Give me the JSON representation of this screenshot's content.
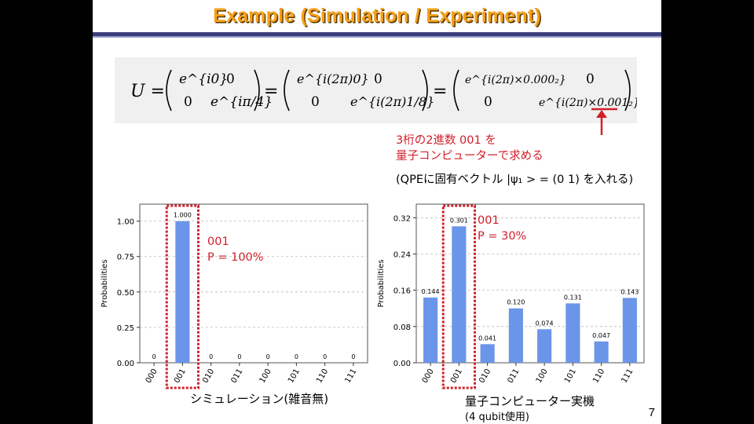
{
  "slide_title": "Example (Simulation / Experiment)",
  "page_number": "7",
  "equation": {
    "lhs": "U =",
    "m1": [
      "e^{i0}",
      "0",
      "0",
      "e^{iπ/4}"
    ],
    "m2": [
      "e^{i(2π)0}",
      "0",
      "0",
      "e^{i(2π)1/8}"
    ],
    "m3": [
      "e^{i(2π)×0.000₂}",
      "0",
      "0",
      "e^{i(2π)×0.001₂}"
    ]
  },
  "annotation": {
    "line1": "3桁の2進数 001 を",
    "line2": "量子コンピューターで求める",
    "line3": "(QPEに固有ベクトル |ψ₁ > = (0 1) を入れる)"
  },
  "charts": {
    "sim": {
      "caption": "シミュレーション(雑音無)",
      "highlight_label": "001",
      "highlight_prob": "P = 100%"
    },
    "real": {
      "caption": "量子コンピューター実機",
      "subcaption": "(4 qubit使用)",
      "highlight_label": "001",
      "highlight_prob": "P = 30%"
    }
  },
  "chart_data": [
    {
      "type": "bar",
      "title": "",
      "ylabel": "Probabilities",
      "categories": [
        "000",
        "001",
        "010",
        "011",
        "100",
        "101",
        "110",
        "111"
      ],
      "values": [
        0,
        1.0,
        0,
        0,
        0,
        0,
        0,
        0
      ],
      "value_labels": [
        "0",
        "1.000",
        "0",
        "0",
        "0",
        "0",
        "0",
        "0"
      ],
      "yticks": [
        "0.00",
        "0.25",
        "0.50",
        "0.75",
        "1.00"
      ],
      "ylim": [
        0,
        1.12
      ],
      "grid": "horizontal dashed",
      "bar_color": "#6b95e8"
    },
    {
      "type": "bar",
      "title": "",
      "ylabel": "Probabilities",
      "categories": [
        "000",
        "001",
        "010",
        "011",
        "100",
        "101",
        "110",
        "111"
      ],
      "values": [
        0.144,
        0.301,
        0.041,
        0.12,
        0.074,
        0.131,
        0.047,
        0.143
      ],
      "value_labels": [
        "0.144",
        "0.301",
        "0.041",
        "0.120",
        "0.074",
        "0.131",
        "0.047",
        "0.143"
      ],
      "yticks": [
        "0.00",
        "0.08",
        "0.16",
        "0.24",
        "0.32"
      ],
      "ylim": [
        0,
        0.35
      ],
      "grid": "horizontal dashed",
      "bar_color": "#6b95e8"
    }
  ],
  "colors": {
    "title": "#f5a019",
    "accent_red": "#d0202a",
    "bar": "#6b95e8",
    "rule": "#3a3f7a"
  }
}
